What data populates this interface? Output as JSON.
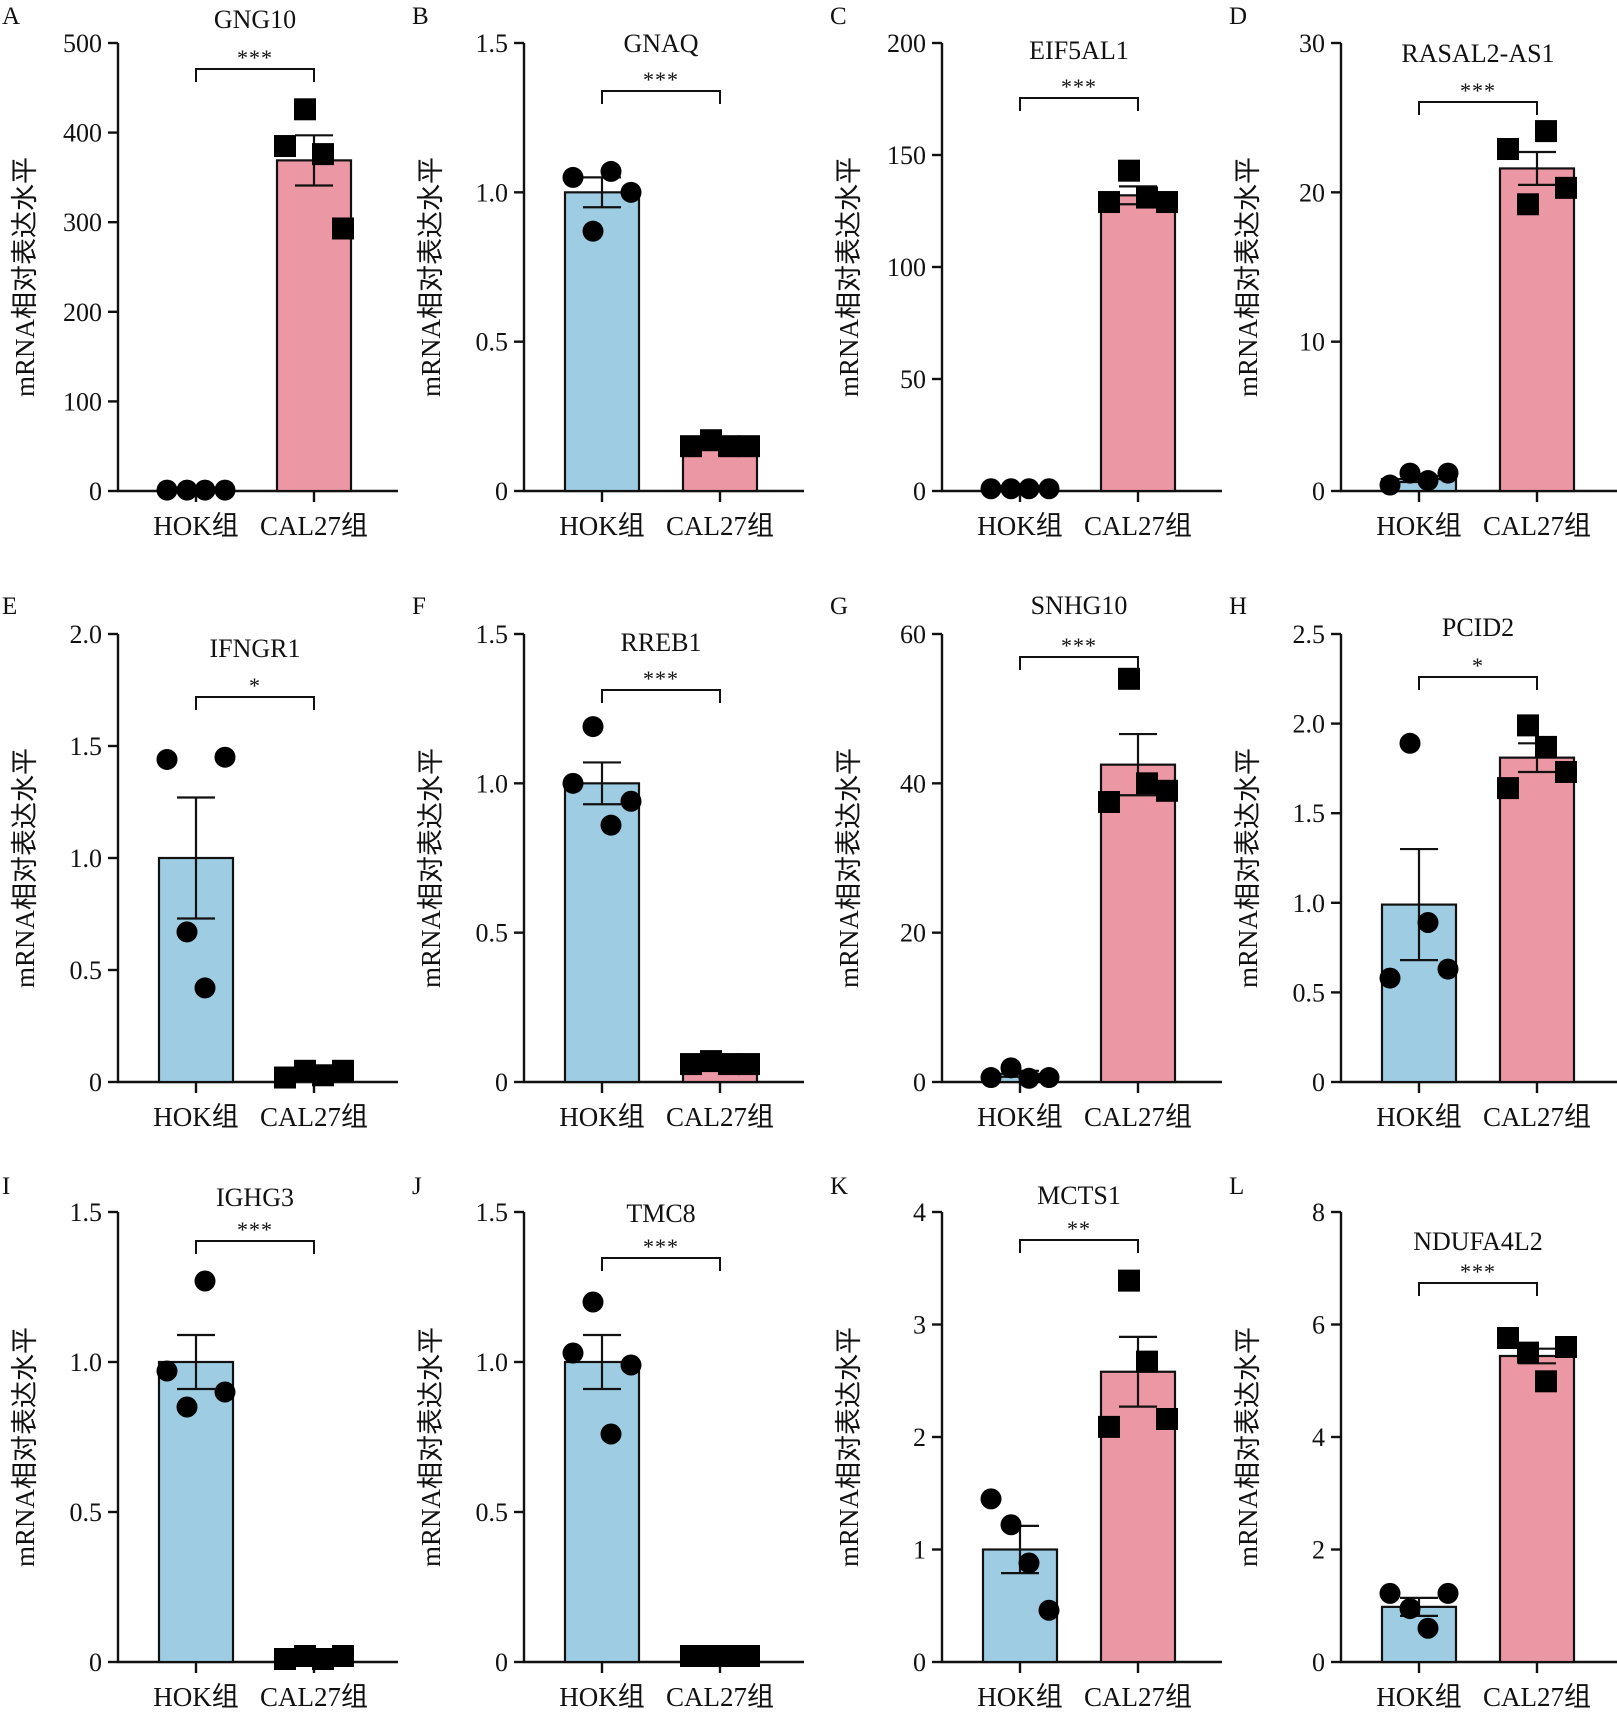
{
  "figure": {
    "colors": {
      "HOK组": "#9ecde3",
      "CAL27组": "#eb98a4",
      "points": "#000000"
    },
    "point_markers": {
      "HOK组": "circle",
      "CAL27组": "square"
    }
  },
  "chart_data": [
    {
      "panel": "A",
      "type": "bar",
      "title": "GNG10",
      "xlabel": "",
      "ylabel": "mRNA相对表达水平",
      "categories": [
        "HOK组",
        "CAL27组"
      ],
      "ylim": [
        0,
        500
      ],
      "yticks": [
        0,
        100,
        200,
        300,
        400,
        500
      ],
      "ytick_labels": [
        "0",
        "100",
        "200",
        "300",
        "400",
        "500"
      ],
      "series": [
        {
          "name": "mean",
          "values": [
            1,
            369
          ]
        }
      ],
      "sem": [
        0.1,
        28
      ],
      "points": [
        [
          1,
          1,
          1,
          1
        ],
        [
          385,
          426,
          376,
          293
        ]
      ],
      "significance": "***",
      "grid": false,
      "legend": "none"
    },
    {
      "panel": "B",
      "type": "bar",
      "title": "GNAQ",
      "xlabel": "",
      "ylabel": "mRNA相对表达水平",
      "categories": [
        "HOK组",
        "CAL27组"
      ],
      "ylim": [
        0,
        1.5
      ],
      "yticks": [
        0,
        0.5,
        1.0,
        1.5
      ],
      "ytick_labels": [
        "0",
        "0.5",
        "1.0",
        "1.5"
      ],
      "series": [
        {
          "name": "mean",
          "values": [
            1.0,
            0.16
          ]
        }
      ],
      "sem": [
        0.05,
        0.01
      ],
      "points": [
        [
          1.05,
          0.87,
          1.07,
          1.0
        ],
        [
          0.15,
          0.17,
          0.15,
          0.15
        ]
      ],
      "significance": "***",
      "grid": false,
      "legend": "none"
    },
    {
      "panel": "C",
      "type": "bar",
      "title": "EIF5AL1",
      "xlabel": "",
      "ylabel": "mRNA相对表达水平",
      "categories": [
        "HOK组",
        "CAL27组"
      ],
      "ylim": [
        0,
        200
      ],
      "yticks": [
        0,
        50,
        100,
        150,
        200
      ],
      "ytick_labels": [
        "0",
        "50",
        "100",
        "150",
        "200"
      ],
      "series": [
        {
          "name": "mean",
          "values": [
            1,
            132
          ]
        }
      ],
      "sem": [
        0.1,
        4
      ],
      "points": [
        [
          1,
          1,
          1,
          1
        ],
        [
          129,
          143,
          131,
          129
        ]
      ],
      "significance": "***",
      "grid": false,
      "legend": "none"
    },
    {
      "panel": "D",
      "type": "bar",
      "title": "RASAL2-AS1",
      "xlabel": "",
      "ylabel": "mRNA相对表达水平",
      "categories": [
        "HOK组",
        "CAL27组"
      ],
      "ylim": [
        0,
        30
      ],
      "yticks": [
        0,
        10,
        20,
        30
      ],
      "ytick_labels": [
        "0",
        "10",
        "20",
        "30"
      ],
      "series": [
        {
          "name": "mean",
          "values": [
            0.8,
            21.6
          ]
        }
      ],
      "sem": [
        0.2,
        1.1
      ],
      "points": [
        [
          0.4,
          1.2,
          0.7,
          1.2
        ],
        [
          22.9,
          19.2,
          24.1,
          20.3
        ]
      ],
      "significance": "***",
      "grid": false,
      "legend": "none"
    },
    {
      "panel": "E",
      "type": "bar",
      "title": "IFNGR1",
      "xlabel": "",
      "ylabel": "mRNA相对表达水平",
      "categories": [
        "HOK组",
        "CAL27组"
      ],
      "ylim": [
        0,
        2.0
      ],
      "yticks": [
        0,
        0.5,
        1.0,
        1.5,
        2.0
      ],
      "ytick_labels": [
        "0",
        "0.5",
        "1.0",
        "1.5",
        "2.0"
      ],
      "series": [
        {
          "name": "mean",
          "values": [
            1.0,
            0.04
          ]
        }
      ],
      "sem": [
        0.27,
        0.01
      ],
      "points": [
        [
          1.44,
          0.67,
          0.42,
          1.45
        ],
        [
          0.02,
          0.05,
          0.03,
          0.05
        ]
      ],
      "significance": "*",
      "grid": false,
      "legend": "none"
    },
    {
      "panel": "F",
      "type": "bar",
      "title": "RREB1",
      "xlabel": "",
      "ylabel": "mRNA相对表达水平",
      "categories": [
        "HOK组",
        "CAL27组"
      ],
      "ylim": [
        0,
        1.5
      ],
      "yticks": [
        0,
        0.5,
        1.0,
        1.5
      ],
      "ytick_labels": [
        "0",
        "0.5",
        "1.0",
        "1.5"
      ],
      "series": [
        {
          "name": "mean",
          "values": [
            1.0,
            0.06
          ]
        }
      ],
      "sem": [
        0.07,
        0.005
      ],
      "points": [
        [
          1.0,
          1.19,
          0.86,
          0.94
        ],
        [
          0.06,
          0.07,
          0.06,
          0.06
        ]
      ],
      "significance": "***",
      "grid": false,
      "legend": "none"
    },
    {
      "panel": "G",
      "type": "bar",
      "title": "SNHG10",
      "xlabel": "",
      "ylabel": "mRNA相对表达水平",
      "categories": [
        "HOK组",
        "CAL27组"
      ],
      "ylim": [
        0,
        60
      ],
      "yticks": [
        0,
        20,
        40,
        60
      ],
      "ytick_labels": [
        "0",
        "20",
        "40",
        "60"
      ],
      "series": [
        {
          "name": "mean",
          "values": [
            1.1,
            42.5
          ]
        }
      ],
      "sem": [
        0.4,
        4.1
      ],
      "points": [
        [
          0.6,
          1.9,
          0.5,
          0.6
        ],
        [
          37.5,
          54,
          40,
          39
        ]
      ],
      "significance": "***",
      "grid": false,
      "legend": "none"
    },
    {
      "panel": "H",
      "type": "bar",
      "title": "PCID2",
      "xlabel": "",
      "ylabel": "mRNA相对表达水平",
      "categories": [
        "HOK组",
        "CAL27组"
      ],
      "ylim": [
        0,
        2.5
      ],
      "yticks": [
        0,
        0.5,
        1.0,
        1.5,
        2.0,
        2.5
      ],
      "ytick_labels": [
        "0",
        "0.5",
        "1.0",
        "1.5",
        "2.0",
        "2.5"
      ],
      "series": [
        {
          "name": "mean",
          "values": [
            0.99,
            1.81
          ]
        }
      ],
      "sem": [
        0.31,
        0.08
      ],
      "points": [
        [
          0.58,
          1.89,
          0.89,
          0.63
        ],
        [
          1.64,
          1.99,
          1.87,
          1.73
        ]
      ],
      "significance": "*",
      "grid": false,
      "legend": "none"
    },
    {
      "panel": "I",
      "type": "bar",
      "title": "IGHG3",
      "xlabel": "",
      "ylabel": "mRNA相对表达水平",
      "categories": [
        "HOK组",
        "CAL27组"
      ],
      "ylim": [
        0,
        1.5
      ],
      "yticks": [
        0,
        0.5,
        1.0,
        1.5
      ],
      "ytick_labels": [
        "0",
        "0.5",
        "1.0",
        "1.5"
      ],
      "series": [
        {
          "name": "mean",
          "values": [
            1.0,
            0.02
          ]
        }
      ],
      "sem": [
        0.09,
        0.005
      ],
      "points": [
        [
          0.97,
          0.85,
          1.27,
          0.9
        ],
        [
          0.01,
          0.02,
          0.01,
          0.02
        ]
      ],
      "significance": "***",
      "grid": false,
      "legend": "none"
    },
    {
      "panel": "J",
      "type": "bar",
      "title": "TMC8",
      "xlabel": "",
      "ylabel": "mRNA相对表达水平",
      "categories": [
        "HOK组",
        "CAL27组"
      ],
      "ylim": [
        0,
        1.5
      ],
      "yticks": [
        0,
        0.5,
        1.0,
        1.5
      ],
      "ytick_labels": [
        "0",
        "0.5",
        "1.0",
        "1.5"
      ],
      "series": [
        {
          "name": "mean",
          "values": [
            1.0,
            0.02
          ]
        }
      ],
      "sem": [
        0.09,
        0.005
      ],
      "points": [
        [
          1.03,
          1.2,
          0.76,
          0.99
        ],
        [
          0.02,
          0.02,
          0.02,
          0.02
        ]
      ],
      "significance": "***",
      "grid": false,
      "legend": "none"
    },
    {
      "panel": "K",
      "type": "bar",
      "title": "MCTS1",
      "xlabel": "",
      "ylabel": "mRNA相对表达水平",
      "categories": [
        "HOK组",
        "CAL27组"
      ],
      "ylim": [
        0,
        4
      ],
      "yticks": [
        0,
        1,
        2,
        3,
        4
      ],
      "ytick_labels": [
        "0",
        "1",
        "2",
        "3",
        "4"
      ],
      "series": [
        {
          "name": "mean",
          "values": [
            1.0,
            2.58
          ]
        }
      ],
      "sem": [
        0.21,
        0.31
      ],
      "points": [
        [
          1.45,
          1.22,
          0.88,
          0.46
        ],
        [
          2.09,
          3.39,
          2.67,
          2.16
        ]
      ],
      "significance": "**",
      "grid": false,
      "legend": "none"
    },
    {
      "panel": "L",
      "type": "bar",
      "title": "NDUFA4L2",
      "xlabel": "",
      "ylabel": "mRNA相对表达水平",
      "categories": [
        "HOK组",
        "CAL27组"
      ],
      "ylim": [
        0,
        8
      ],
      "yticks": [
        0,
        2,
        4,
        6,
        8
      ],
      "ytick_labels": [
        "0",
        "2",
        "4",
        "6",
        "8"
      ],
      "series": [
        {
          "name": "mean",
          "values": [
            0.98,
            5.44
          ]
        }
      ],
      "sem": [
        0.16,
        0.13
      ],
      "points": [
        [
          1.22,
          0.95,
          0.6,
          1.22
        ],
        [
          5.76,
          5.5,
          4.99,
          5.6
        ]
      ],
      "significance": "***",
      "grid": false,
      "legend": "none"
    }
  ]
}
